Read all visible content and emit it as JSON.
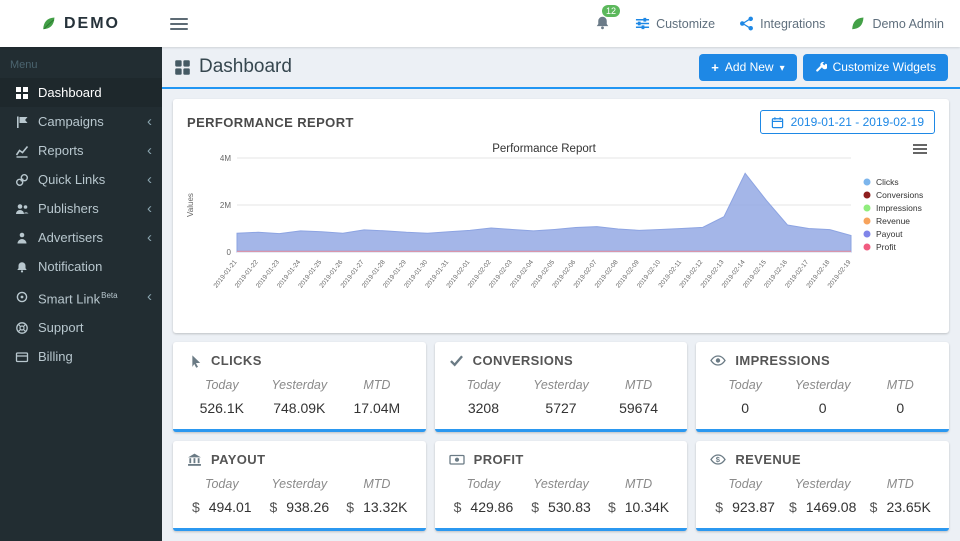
{
  "navbar": {
    "brand": "DEMO",
    "notification_count": "12",
    "customize": "Customize",
    "integrations": "Integrations",
    "user": "Demo Admin"
  },
  "sidebar": {
    "menu_label": "Menu",
    "items": [
      {
        "label": "Dashboard",
        "icon": "dashboard-icon",
        "active": true
      },
      {
        "label": "Campaigns",
        "icon": "campaigns-icon",
        "expandable": true
      },
      {
        "label": "Reports",
        "icon": "reports-icon",
        "expandable": true
      },
      {
        "label": "Quick Links",
        "icon": "quick-links-icon",
        "expandable": true
      },
      {
        "label": "Publishers",
        "icon": "publishers-icon",
        "expandable": true
      },
      {
        "label": "Advertisers",
        "icon": "advertisers-icon",
        "expandable": true
      },
      {
        "label": "Notification",
        "icon": "notification-icon"
      },
      {
        "label": "Smart Link",
        "badge": "Beta",
        "icon": "smart-link-icon",
        "expandable": true
      },
      {
        "label": "Support",
        "icon": "support-icon"
      },
      {
        "label": "Billing",
        "icon": "billing-icon"
      }
    ]
  },
  "header": {
    "title": "Dashboard",
    "add_new": "Add New",
    "customize_widgets": "Customize Widgets"
  },
  "performance": {
    "title": "PERFORMANCE REPORT",
    "date_range": "2019-01-21 - 2019-02-19"
  },
  "chart_data": {
    "type": "area",
    "title": "Performance Report",
    "ylabel": "Values",
    "yticks": [
      "0",
      "2M",
      "4M"
    ],
    "ylim": [
      0,
      4000000
    ],
    "grid": true,
    "legend_position": "right",
    "x": [
      "2019-01-21",
      "2019-01-22",
      "2019-01-23",
      "2019-01-24",
      "2019-01-25",
      "2019-01-26",
      "2019-01-27",
      "2019-01-28",
      "2019-01-29",
      "2019-01-30",
      "2019-01-31",
      "2019-02-01",
      "2019-02-02",
      "2019-02-03",
      "2019-02-04",
      "2019-02-05",
      "2019-02-06",
      "2019-02-07",
      "2019-02-08",
      "2019-02-09",
      "2019-02-10",
      "2019-02-11",
      "2019-02-12",
      "2019-02-13",
      "2019-02-14",
      "2019-02-15",
      "2019-02-16",
      "2019-02-17",
      "2019-02-18",
      "2019-02-19"
    ],
    "series": [
      {
        "name": "Clicks",
        "type": "area",
        "color": "#8da4e2",
        "values": [
          800000,
          840000,
          780000,
          900000,
          860000,
          800000,
          940000,
          900000,
          840000,
          800000,
          860000,
          920000,
          1020000,
          960000,
          900000,
          960000,
          1040000,
          1080000,
          980000,
          920000,
          960000,
          1000000,
          1050000,
          1500000,
          3350000,
          2200000,
          1150000,
          1000000,
          950000,
          700000
        ]
      },
      {
        "name": "Profit",
        "type": "line",
        "color": "#e4566e",
        "values": [
          20000,
          20000,
          20000,
          20000,
          20000,
          20000,
          20000,
          20000,
          20000,
          20000,
          20000,
          20000,
          20000,
          20000,
          20000,
          20000,
          20000,
          20000,
          20000,
          20000,
          20000,
          20000,
          20000,
          20000,
          20000,
          20000,
          20000,
          20000,
          20000,
          20000
        ]
      }
    ],
    "legend": [
      {
        "name": "Clicks",
        "color": "#7cb5ec"
      },
      {
        "name": "Conversions",
        "color": "#8e1f1f"
      },
      {
        "name": "Impressions",
        "color": "#90ed7d"
      },
      {
        "name": "Revenue",
        "color": "#f7a35c"
      },
      {
        "name": "Payout",
        "color": "#8085e9"
      },
      {
        "name": "Profit",
        "color": "#f15c80"
      }
    ]
  },
  "stats": [
    {
      "title": "CLICKS",
      "icon": "clicks-icon",
      "cols": [
        {
          "label": "Today",
          "value": "526.1K"
        },
        {
          "label": "Yesterday",
          "value": "748.09K"
        },
        {
          "label": "MTD",
          "value": "17.04M"
        }
      ]
    },
    {
      "title": "CONVERSIONS",
      "icon": "conversions-icon",
      "cols": [
        {
          "label": "Today",
          "value": "3208"
        },
        {
          "label": "Yesterday",
          "value": "5727"
        },
        {
          "label": "MTD",
          "value": "59674"
        }
      ]
    },
    {
      "title": "IMPRESSIONS",
      "icon": "impressions-icon",
      "cols": [
        {
          "label": "Today",
          "value": "0"
        },
        {
          "label": "Yesterday",
          "value": "0"
        },
        {
          "label": "MTD",
          "value": "0"
        }
      ]
    },
    {
      "title": "PAYOUT",
      "icon": "payout-icon",
      "currency": "$",
      "cols": [
        {
          "label": "Today",
          "value": "494.01"
        },
        {
          "label": "Yesterday",
          "value": "938.26"
        },
        {
          "label": "MTD",
          "value": "13.32K"
        }
      ]
    },
    {
      "title": "PROFIT",
      "icon": "profit-icon",
      "currency": "$",
      "cols": [
        {
          "label": "Today",
          "value": "429.86"
        },
        {
          "label": "Yesterday",
          "value": "530.83"
        },
        {
          "label": "MTD",
          "value": "10.34K"
        }
      ]
    },
    {
      "title": "REVENUE",
      "icon": "revenue-icon",
      "currency": "$",
      "cols": [
        {
          "label": "Today",
          "value": "923.87"
        },
        {
          "label": "Yesterday",
          "value": "1469.08"
        },
        {
          "label": "MTD",
          "value": "23.65K"
        }
      ]
    }
  ]
}
